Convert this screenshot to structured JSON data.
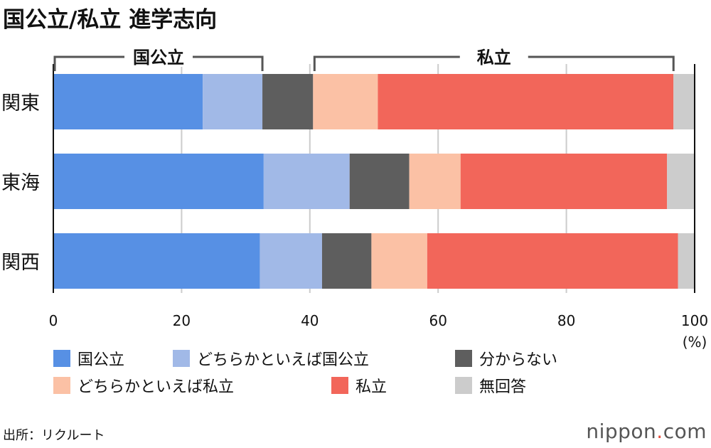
{
  "title": "国公立/私立 進学志向",
  "chart_data": {
    "type": "bar",
    "orientation": "horizontal",
    "stacked": true,
    "title": "国公立/私立 進学志向",
    "categories": [
      "関東",
      "東海",
      "関西"
    ],
    "series": [
      {
        "name": "国公立",
        "color": "#5790e4",
        "values": [
          23.3,
          32.8,
          32.2
        ]
      },
      {
        "name": "どちらかといえば国公立",
        "color": "#a1b9e7",
        "values": [
          9.3,
          13.4,
          9.7
        ]
      },
      {
        "name": "分からない",
        "color": "#5e5e5e",
        "values": [
          7.9,
          9.3,
          7.7
        ]
      },
      {
        "name": "どちらかといえば私立",
        "color": "#fbc1a5",
        "values": [
          10.1,
          8.0,
          8.7
        ]
      },
      {
        "name": "私立",
        "color": "#f2665a",
        "values": [
          46.1,
          32.2,
          39.1
        ]
      },
      {
        "name": "無回答",
        "color": "#cccccc",
        "values": [
          3.3,
          4.3,
          2.6
        ]
      }
    ],
    "xlim": [
      0,
      100
    ],
    "xticks": [
      "0",
      "20",
      "40",
      "60",
      "80",
      "100"
    ],
    "xunit": "(%)",
    "grid": true,
    "brackets": [
      {
        "label": "国公立"
      },
      {
        "label": "私立"
      }
    ],
    "legend_position": "bottom"
  },
  "source": "出所：リクルート",
  "logo": {
    "name": "nippon",
    "dot": ".",
    "tld": "com"
  }
}
